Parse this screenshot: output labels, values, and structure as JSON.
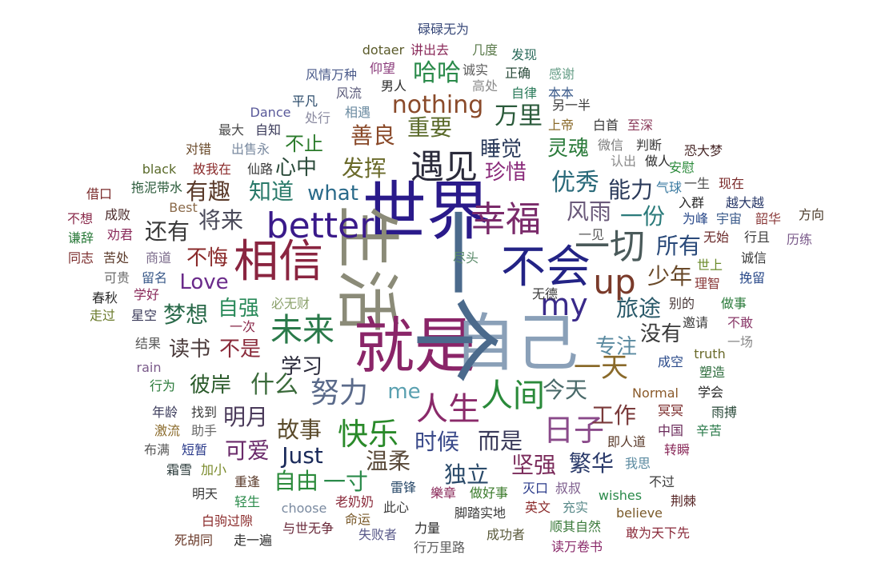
{
  "word_cloud": {
    "words": [
      {
        "text": "世界",
        "color": "#2a1a8a"
      },
      {
        "text": "生活",
        "color": "#8b8b78"
      },
      {
        "text": "就是",
        "color": "#8a2568"
      },
      {
        "text": "自己",
        "color": "#8aa0b8"
      },
      {
        "text": "一个",
        "color": "#4b6a8c"
      },
      {
        "text": "相信",
        "color": "#8a2540"
      },
      {
        "text": "不会",
        "color": "#232385"
      },
      {
        "text": "better",
        "color": "#3a1a8a"
      },
      {
        "text": "幸福",
        "color": "#7a2a6a"
      },
      {
        "text": "遇见",
        "color": "#2a2a3a"
      },
      {
        "text": "一切",
        "color": "#4a5a5a"
      },
      {
        "text": "up",
        "color": "#7a3a2a"
      },
      {
        "text": "my",
        "color": "#3a2a8a"
      },
      {
        "text": "未来",
        "color": "#2a7a4a"
      },
      {
        "text": "人生",
        "color": "#8a2a6a"
      },
      {
        "text": "人间",
        "color": "#2a8a3a"
      },
      {
        "text": "努力",
        "color": "#5a6a8a"
      },
      {
        "text": "日子",
        "color": "#8a4a8a"
      },
      {
        "text": "快乐",
        "color": "#2a8a2a"
      },
      {
        "text": "nothing",
        "color": "#8a4a2a"
      },
      {
        "text": "哈哈",
        "color": "#2a8a4a"
      },
      {
        "text": "万里",
        "color": "#2a5a3a"
      },
      {
        "text": "重要",
        "color": "#5a6a2a"
      },
      {
        "text": "善良",
        "color": "#8a4a2a"
      },
      {
        "text": "睡觉",
        "color": "#2a3a5a"
      },
      {
        "text": "灵魂",
        "color": "#2a7a3a"
      },
      {
        "text": "不止",
        "color": "#2a7a2a"
      },
      {
        "text": "心中",
        "color": "#2a4a3a"
      },
      {
        "text": "发挥",
        "color": "#6a6a2a"
      },
      {
        "text": "珍惜",
        "color": "#8a2a7a"
      },
      {
        "text": "优秀",
        "color": "#2a6a7a"
      },
      {
        "text": "能力",
        "color": "#2a3a5a"
      },
      {
        "text": "有趣",
        "color": "#5a3a2a"
      },
      {
        "text": "知道",
        "color": "#2a7a6a"
      },
      {
        "text": "what",
        "color": "#2a6a8a"
      },
      {
        "text": "风雨",
        "color": "#6a5a7a"
      },
      {
        "text": "一份",
        "color": "#2a7a7a"
      },
      {
        "text": "还有",
        "color": "#3a3a3a"
      },
      {
        "text": "将来",
        "color": "#4a4a5a"
      },
      {
        "text": "所有",
        "color": "#2a4a7a"
      },
      {
        "text": "不悔",
        "color": "#8a2a2a"
      },
      {
        "text": "Love",
        "color": "#6a2a8a"
      },
      {
        "text": "少年",
        "color": "#6a4a2a"
      },
      {
        "text": "自强",
        "color": "#2a8a5a"
      },
      {
        "text": "梦想",
        "color": "#2a6a4a"
      },
      {
        "text": "旅途",
        "color": "#2a5a6a"
      },
      {
        "text": "读书",
        "color": "#4a3a3a"
      },
      {
        "text": "不是",
        "color": "#8a2a3a"
      },
      {
        "text": "专注",
        "color": "#5a8aa0"
      },
      {
        "text": "没有",
        "color": "#3a3a3a"
      },
      {
        "text": "学习",
        "color": "#2a2a3a"
      },
      {
        "text": "一天",
        "color": "#8a6a2a"
      },
      {
        "text": "彼岸",
        "color": "#2a5a2a"
      },
      {
        "text": "什么",
        "color": "#3a6a3a"
      },
      {
        "text": "me",
        "color": "#5aa0b0"
      },
      {
        "text": "今天",
        "color": "#4a6a6a"
      },
      {
        "text": "明月",
        "color": "#4a3a5a"
      },
      {
        "text": "工作",
        "color": "#7a3a3a"
      },
      {
        "text": "故事",
        "color": "#5a4a2a"
      },
      {
        "text": "可爱",
        "color": "#6a2a6a"
      },
      {
        "text": "时候",
        "color": "#3a4a8a"
      },
      {
        "text": "而是",
        "color": "#3a3a5a"
      },
      {
        "text": "Just",
        "color": "#1a2a5a"
      },
      {
        "text": "自由",
        "color": "#2a8a3a"
      },
      {
        "text": "一寸",
        "color": "#2a8a4a"
      },
      {
        "text": "温柔",
        "color": "#5a4a3a"
      },
      {
        "text": "独立",
        "color": "#2a4a6a"
      },
      {
        "text": "坚强",
        "color": "#7a2a5a"
      },
      {
        "text": "繁华",
        "color": "#2a3a6a"
      },
      {
        "text": "碌碌无为",
        "color": "#3a4a7a"
      },
      {
        "text": "dotaer",
        "color": "#5a5a2a"
      },
      {
        "text": "讲出去",
        "color": "#8a2a5a"
      },
      {
        "text": "几度",
        "color": "#5a7a4a"
      },
      {
        "text": "发现",
        "color": "#2a6a5a"
      },
      {
        "text": "风情万种",
        "color": "#4a5a8a"
      },
      {
        "text": "仰望",
        "color": "#8a3a7a"
      },
      {
        "text": "诚实",
        "color": "#5a5a5a"
      },
      {
        "text": "正确",
        "color": "#2a4a3a"
      },
      {
        "text": "感谢",
        "color": "#6aa08a"
      },
      {
        "text": "男人",
        "color": "#2a2a2a"
      },
      {
        "text": "高处",
        "color": "#8a8a8a"
      },
      {
        "text": "风流",
        "color": "#5a5a7a"
      },
      {
        "text": "自律",
        "color": "#2a7a5a"
      },
      {
        "text": "本本",
        "color": "#3a5a8a"
      },
      {
        "text": "平凡",
        "color": "#2a4a6a"
      },
      {
        "text": "相遇",
        "color": "#6a8aa0"
      },
      {
        "text": "另一半",
        "color": "#3a3a3a"
      },
      {
        "text": "Dance",
        "color": "#5a5a9a"
      },
      {
        "text": "处行",
        "color": "#8a8aa0"
      },
      {
        "text": "上帝",
        "color": "#8a6a2a"
      },
      {
        "text": "白首",
        "color": "#3a3a3a"
      },
      {
        "text": "至深",
        "color": "#8a3a5a"
      },
      {
        "text": "最大",
        "color": "#4a4a4a"
      },
      {
        "text": "自知",
        "color": "#3a3a5a"
      },
      {
        "text": "微信",
        "color": "#7a7a7a"
      },
      {
        "text": "判断",
        "color": "#3a3a3a"
      },
      {
        "text": "恐大梦",
        "color": "#4a2a2a"
      },
      {
        "text": "对错",
        "color": "#6a4a2a"
      },
      {
        "text": "出售永",
        "color": "#7a8aa0"
      },
      {
        "text": "认出",
        "color": "#8a8a8a"
      },
      {
        "text": "做人",
        "color": "#2a2a2a"
      },
      {
        "text": "安慰",
        "color": "#2a8a3a"
      },
      {
        "text": "black",
        "color": "#5a6a2a"
      },
      {
        "text": "故我在",
        "color": "#8a2a2a"
      },
      {
        "text": "仙路",
        "color": "#3a3a3a"
      },
      {
        "text": "一生",
        "color": "#4a4a4a"
      },
      {
        "text": "现在",
        "color": "#7a2a2a"
      },
      {
        "text": "借口",
        "color": "#7a2a2a"
      },
      {
        "text": "拖泥带水",
        "color": "#2a5a3a"
      },
      {
        "text": "气球",
        "color": "#3a7aa0"
      },
      {
        "text": "入群",
        "color": "#2a2a2a"
      },
      {
        "text": "越大越",
        "color": "#2a3a6a"
      },
      {
        "text": "Best",
        "color": "#8a6a4a"
      },
      {
        "text": "不想",
        "color": "#8a2a4a"
      },
      {
        "text": "成败",
        "color": "#4a2a2a"
      },
      {
        "text": "为峰",
        "color": "#2a4a8a"
      },
      {
        "text": "宇宙",
        "color": "#3a5a8a"
      },
      {
        "text": "韶华",
        "color": "#8a3a3a"
      },
      {
        "text": "方向",
        "color": "#4a3a2a"
      },
      {
        "text": "谦辞",
        "color": "#2a7a3a"
      },
      {
        "text": "劝君",
        "color": "#8a2a5a"
      },
      {
        "text": "一见",
        "color": "#5a5a5a"
      },
      {
        "text": "无始",
        "color": "#6a2a2a"
      },
      {
        "text": "行且",
        "color": "#3a3a3a"
      },
      {
        "text": "历练",
        "color": "#7a5a8a"
      },
      {
        "text": "同志",
        "color": "#7a2a2a"
      },
      {
        "text": "苦处",
        "color": "#5a3a2a"
      },
      {
        "text": "商道",
        "color": "#7a6a8a"
      },
      {
        "text": "尽头",
        "color": "#5a8a6a"
      },
      {
        "text": "诚信",
        "color": "#3a3a3a"
      },
      {
        "text": "世上",
        "color": "#6a8a2a"
      },
      {
        "text": "可贵",
        "color": "#6a6a6a"
      },
      {
        "text": "留名",
        "color": "#3a5a8a"
      },
      {
        "text": "理智",
        "color": "#8a3a3a"
      },
      {
        "text": "挽留",
        "color": "#2a4a8a"
      },
      {
        "text": "春秋",
        "color": "#2a2a2a"
      },
      {
        "text": "学好",
        "color": "#8a2a5a"
      },
      {
        "text": "必无财",
        "color": "#8aa06a"
      },
      {
        "text": "无德",
        "color": "#3a3a3a"
      },
      {
        "text": "别的",
        "color": "#4a3a3a"
      },
      {
        "text": "做事",
        "color": "#2a7a3a"
      },
      {
        "text": "走过",
        "color": "#6a7a2a"
      },
      {
        "text": "星空",
        "color": "#3a3a5a"
      },
      {
        "text": "一次",
        "color": "#8a2a4a"
      },
      {
        "text": "邀请",
        "color": "#3a3a3a"
      },
      {
        "text": "不敢",
        "color": "#8a3a6a"
      },
      {
        "text": "结果",
        "color": "#5a5a5a"
      },
      {
        "text": "一场",
        "color": "#8a8a8a"
      },
      {
        "text": "truth",
        "color": "#6a6a2a"
      },
      {
        "text": "rain",
        "color": "#7a5a8a"
      },
      {
        "text": "成空",
        "color": "#2a4a8a"
      },
      {
        "text": "塑造",
        "color": "#2a6a3a"
      },
      {
        "text": "行为",
        "color": "#2a7a3a"
      },
      {
        "text": "Normal",
        "color": "#8a5a2a"
      },
      {
        "text": "学会",
        "color": "#2a2a2a"
      },
      {
        "text": "年龄",
        "color": "#3a3a5a"
      },
      {
        "text": "找到",
        "color": "#3a3a3a"
      },
      {
        "text": "冥冥",
        "color": "#7a2a2a"
      },
      {
        "text": "雨搏",
        "color": "#2a4a3a"
      },
      {
        "text": "激流",
        "color": "#8a6a2a"
      },
      {
        "text": "助手",
        "color": "#6a6a6a"
      },
      {
        "text": "中国",
        "color": "#6a2a5a"
      },
      {
        "text": "辛苦",
        "color": "#2a7a4a"
      },
      {
        "text": "即人道",
        "color": "#5a3a2a"
      },
      {
        "text": "布满",
        "color": "#5a5a5a"
      },
      {
        "text": "短暂",
        "color": "#2a3a8a"
      },
      {
        "text": "转瞬",
        "color": "#8a2a5a"
      },
      {
        "text": "霜雪",
        "color": "#2a3a3a"
      },
      {
        "text": "加小",
        "color": "#7a8a2a"
      },
      {
        "text": "我思",
        "color": "#5a8aa0"
      },
      {
        "text": "重逢",
        "color": "#5a3a2a"
      },
      {
        "text": "雷锋",
        "color": "#2a4a6a"
      },
      {
        "text": "樂章",
        "color": "#8a2a5a"
      },
      {
        "text": "做好事",
        "color": "#3a7a2a"
      },
      {
        "text": "灭口",
        "color": "#2a3a8a"
      },
      {
        "text": "叔叔",
        "color": "#7a5a8a"
      },
      {
        "text": "不过",
        "color": "#3a3a3a"
      },
      {
        "text": "明天",
        "color": "#3a3a3a"
      },
      {
        "text": "wishes",
        "color": "#2a8a4a"
      },
      {
        "text": "荆棘",
        "color": "#5a2a2a"
      },
      {
        "text": "轻生",
        "color": "#2a8a4a"
      },
      {
        "text": "choose",
        "color": "#7a8aa0"
      },
      {
        "text": "老奶奶",
        "color": "#8a2a3a"
      },
      {
        "text": "此心",
        "color": "#3a3a3a"
      },
      {
        "text": "英文",
        "color": "#8a2a2a"
      },
      {
        "text": "充实",
        "color": "#5a8a8a"
      },
      {
        "text": "believe",
        "color": "#7a5a2a"
      },
      {
        "text": "白驹过隙",
        "color": "#8a2a2a"
      },
      {
        "text": "命运",
        "color": "#7a5a2a"
      },
      {
        "text": "脚踏实地",
        "color": "#3a3a3a"
      },
      {
        "text": "与世无争",
        "color": "#6a2a3a"
      },
      {
        "text": "失败者",
        "color": "#5a5a8a"
      },
      {
        "text": "力量",
        "color": "#2a2a2a"
      },
      {
        "text": "成功者",
        "color": "#5a5a3a"
      },
      {
        "text": "顺其自然",
        "color": "#3a7a3a"
      },
      {
        "text": "敢为天下先",
        "color": "#8a2a3a"
      },
      {
        "text": "死胡同",
        "color": "#6a3a2a"
      },
      {
        "text": "走一遍",
        "color": "#2a2a2a"
      },
      {
        "text": "行万里路",
        "color": "#5a5a5a"
      },
      {
        "text": "读万卷书",
        "color": "#8a2a6a"
      }
    ]
  }
}
